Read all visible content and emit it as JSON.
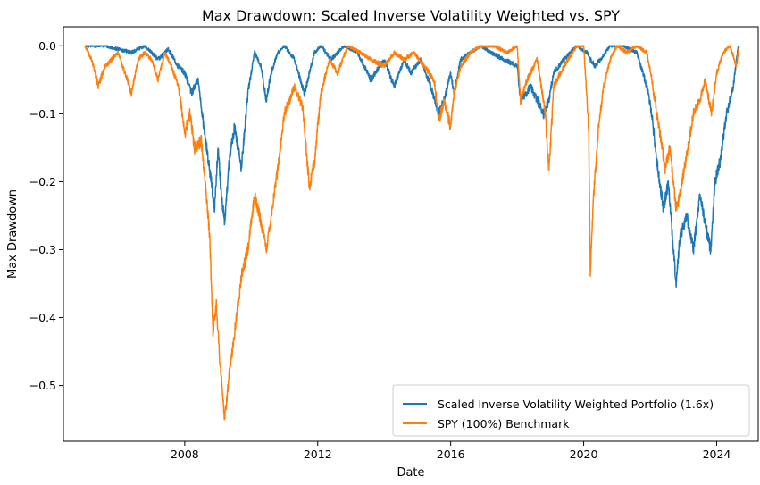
{
  "chart_data": {
    "type": "line",
    "title": "Max Drawdown: Scaled Inverse Volatility Weighted vs. SPY",
    "xlabel": "Date",
    "ylabel": "Max Drawdown",
    "xlim": [
      2004.35,
      2025.25
    ],
    "ylim": [
      -0.582,
      0.028
    ],
    "x_ticks": [
      {
        "value": 2008,
        "label": "2008"
      },
      {
        "value": 2012,
        "label": "2012"
      },
      {
        "value": 2016,
        "label": "2016"
      },
      {
        "value": 2020,
        "label": "2020"
      },
      {
        "value": 2024,
        "label": "2024"
      }
    ],
    "y_ticks": [
      {
        "value": 0.0,
        "label": "0.0"
      },
      {
        "value": -0.1,
        "label": "−0.1"
      },
      {
        "value": -0.2,
        "label": "−0.2"
      },
      {
        "value": -0.3,
        "label": "−0.3"
      },
      {
        "value": -0.4,
        "label": "−0.4"
      },
      {
        "value": -0.5,
        "label": "−0.5"
      }
    ],
    "grid": false,
    "legend_position": "lower-right",
    "series": [
      {
        "name": "Scaled Inverse Volatility Weighted Portfolio (1.6x)",
        "color": "#1f77b4",
        "x": [
          2005.0,
          2005.6,
          2006.0,
          2006.4,
          2006.8,
          2007.2,
          2007.5,
          2007.8,
          2008.0,
          2008.2,
          2008.4,
          2008.6,
          2008.8,
          2008.9,
          2009.0,
          2009.1,
          2009.2,
          2009.35,
          2009.5,
          2009.7,
          2009.9,
          2010.1,
          2010.3,
          2010.45,
          2010.6,
          2010.8,
          2011.0,
          2011.3,
          2011.6,
          2011.75,
          2011.9,
          2012.1,
          2012.4,
          2012.8,
          2013.2,
          2013.6,
          2014.0,
          2014.3,
          2014.6,
          2014.8,
          2015.1,
          2015.4,
          2015.65,
          2015.8,
          2016.0,
          2016.1,
          2016.3,
          2016.6,
          2016.9,
          2017.2,
          2017.6,
          2018.0,
          2018.1,
          2018.4,
          2018.8,
          2018.95,
          2019.1,
          2019.4,
          2019.8,
          2020.1,
          2020.2,
          2020.35,
          2020.5,
          2020.8,
          2021.2,
          2021.6,
          2021.9,
          2022.05,
          2022.2,
          2022.4,
          2022.55,
          2022.7,
          2022.78,
          2022.9,
          2023.1,
          2023.3,
          2023.5,
          2023.65,
          2023.82,
          2023.95,
          2024.1,
          2024.3,
          2024.5,
          2024.65
        ],
        "values": [
          0.0,
          0.0,
          -0.005,
          -0.01,
          0.0,
          -0.02,
          -0.005,
          -0.03,
          -0.04,
          -0.07,
          -0.05,
          -0.13,
          -0.2,
          -0.24,
          -0.15,
          -0.22,
          -0.26,
          -0.16,
          -0.12,
          -0.18,
          -0.07,
          -0.01,
          -0.03,
          -0.08,
          -0.04,
          -0.01,
          0.0,
          -0.02,
          -0.07,
          -0.04,
          -0.01,
          0.0,
          -0.02,
          0.0,
          -0.01,
          -0.05,
          -0.02,
          -0.06,
          -0.02,
          -0.04,
          -0.02,
          -0.06,
          -0.1,
          -0.08,
          -0.04,
          -0.07,
          -0.02,
          -0.01,
          0.0,
          -0.01,
          -0.02,
          -0.03,
          -0.08,
          -0.06,
          -0.1,
          -0.08,
          -0.04,
          -0.02,
          0.0,
          -0.01,
          -0.02,
          -0.03,
          -0.02,
          0.0,
          0.0,
          -0.01,
          -0.06,
          -0.1,
          -0.17,
          -0.24,
          -0.2,
          -0.3,
          -0.35,
          -0.28,
          -0.25,
          -0.3,
          -0.22,
          -0.26,
          -0.3,
          -0.2,
          -0.17,
          -0.1,
          -0.06,
          0.0
        ]
      },
      {
        "name": "SPY (100%) Benchmark",
        "color": "#ff7f0e",
        "x": [
          2005.0,
          2005.2,
          2005.4,
          2005.6,
          2005.8,
          2006.0,
          2006.2,
          2006.4,
          2006.6,
          2006.8,
          2007.0,
          2007.2,
          2007.4,
          2007.6,
          2007.8,
          2007.9,
          2008.0,
          2008.15,
          2008.3,
          2008.5,
          2008.65,
          2008.75,
          2008.85,
          2008.95,
          2009.05,
          2009.15,
          2009.2,
          2009.35,
          2009.5,
          2009.7,
          2009.9,
          2010.1,
          2010.3,
          2010.45,
          2010.6,
          2010.8,
          2011.0,
          2011.3,
          2011.55,
          2011.65,
          2011.75,
          2011.9,
          2012.1,
          2012.35,
          2012.6,
          2012.9,
          2013.3,
          2013.6,
          2014.0,
          2014.3,
          2014.6,
          2014.9,
          2015.2,
          2015.5,
          2015.65,
          2015.8,
          2016.0,
          2016.1,
          2016.3,
          2016.6,
          2016.9,
          2017.3,
          2017.7,
          2018.0,
          2018.1,
          2018.3,
          2018.6,
          2018.85,
          2018.95,
          2019.1,
          2019.4,
          2019.8,
          2020.0,
          2020.15,
          2020.2,
          2020.3,
          2020.45,
          2020.6,
          2020.8,
          2021.0,
          2021.3,
          2021.6,
          2021.9,
          2022.05,
          2022.2,
          2022.45,
          2022.6,
          2022.78,
          2022.9,
          2023.1,
          2023.3,
          2023.5,
          2023.65,
          2023.85,
          2024.0,
          2024.2,
          2024.4,
          2024.6,
          2024.68
        ],
        "values": [
          0.0,
          -0.02,
          -0.06,
          -0.03,
          -0.02,
          -0.01,
          -0.04,
          -0.07,
          -0.02,
          -0.01,
          -0.02,
          -0.05,
          -0.01,
          -0.03,
          -0.06,
          -0.09,
          -0.13,
          -0.1,
          -0.15,
          -0.14,
          -0.22,
          -0.28,
          -0.42,
          -0.38,
          -0.46,
          -0.52,
          -0.55,
          -0.48,
          -0.42,
          -0.34,
          -0.3,
          -0.22,
          -0.26,
          -0.3,
          -0.25,
          -0.18,
          -0.1,
          -0.06,
          -0.09,
          -0.15,
          -0.21,
          -0.17,
          -0.07,
          -0.02,
          -0.04,
          0.0,
          -0.01,
          -0.02,
          -0.03,
          -0.01,
          -0.02,
          -0.01,
          -0.03,
          -0.05,
          -0.11,
          -0.08,
          -0.12,
          -0.07,
          -0.03,
          -0.01,
          0.0,
          0.0,
          -0.01,
          0.0,
          -0.08,
          -0.05,
          -0.02,
          -0.1,
          -0.19,
          -0.06,
          -0.03,
          0.0,
          0.0,
          -0.12,
          -0.33,
          -0.22,
          -0.12,
          -0.06,
          -0.02,
          0.0,
          -0.01,
          0.0,
          -0.01,
          -0.05,
          -0.1,
          -0.18,
          -0.15,
          -0.24,
          -0.22,
          -0.16,
          -0.1,
          -0.08,
          -0.05,
          -0.1,
          -0.04,
          -0.01,
          0.0,
          -0.03,
          0.0
        ]
      }
    ]
  }
}
